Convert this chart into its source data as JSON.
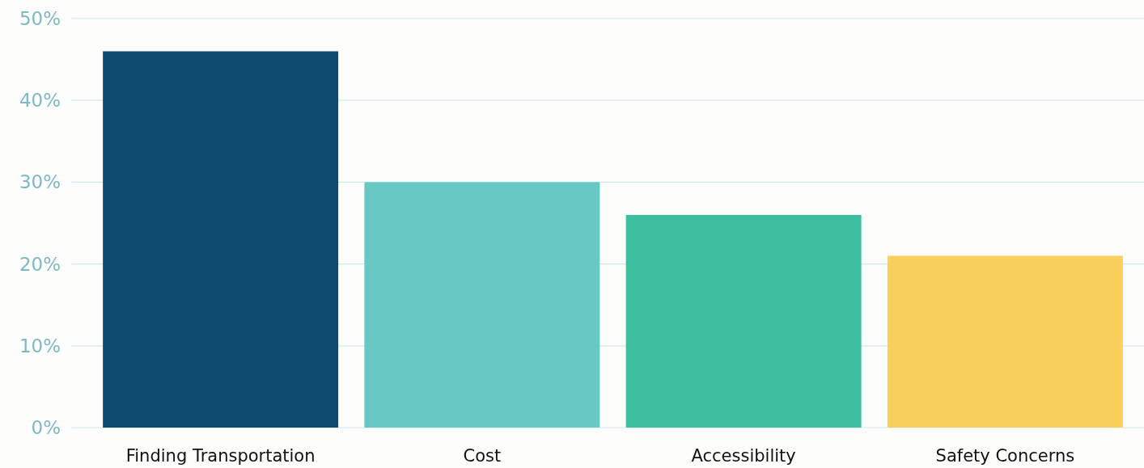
{
  "chart_data": {
    "type": "bar",
    "categories": [
      "Finding Transportation",
      "Cost",
      "Accessibility",
      "Safety Concerns"
    ],
    "values": [
      46,
      30,
      26,
      21
    ],
    "colors": [
      "#0e4a70",
      "#68c9c4",
      "#3dbf9f",
      "#f8d05b"
    ],
    "ylim": [
      0,
      50
    ],
    "yticks": [
      {
        "value": 0,
        "label": "0%"
      },
      {
        "value": 10,
        "label": "10%"
      },
      {
        "value": 20,
        "label": "20%"
      },
      {
        "value": 30,
        "label": "30%"
      },
      {
        "value": 40,
        "label": "40%"
      },
      {
        "value": 50,
        "label": "50%"
      }
    ],
    "grid": "y"
  }
}
